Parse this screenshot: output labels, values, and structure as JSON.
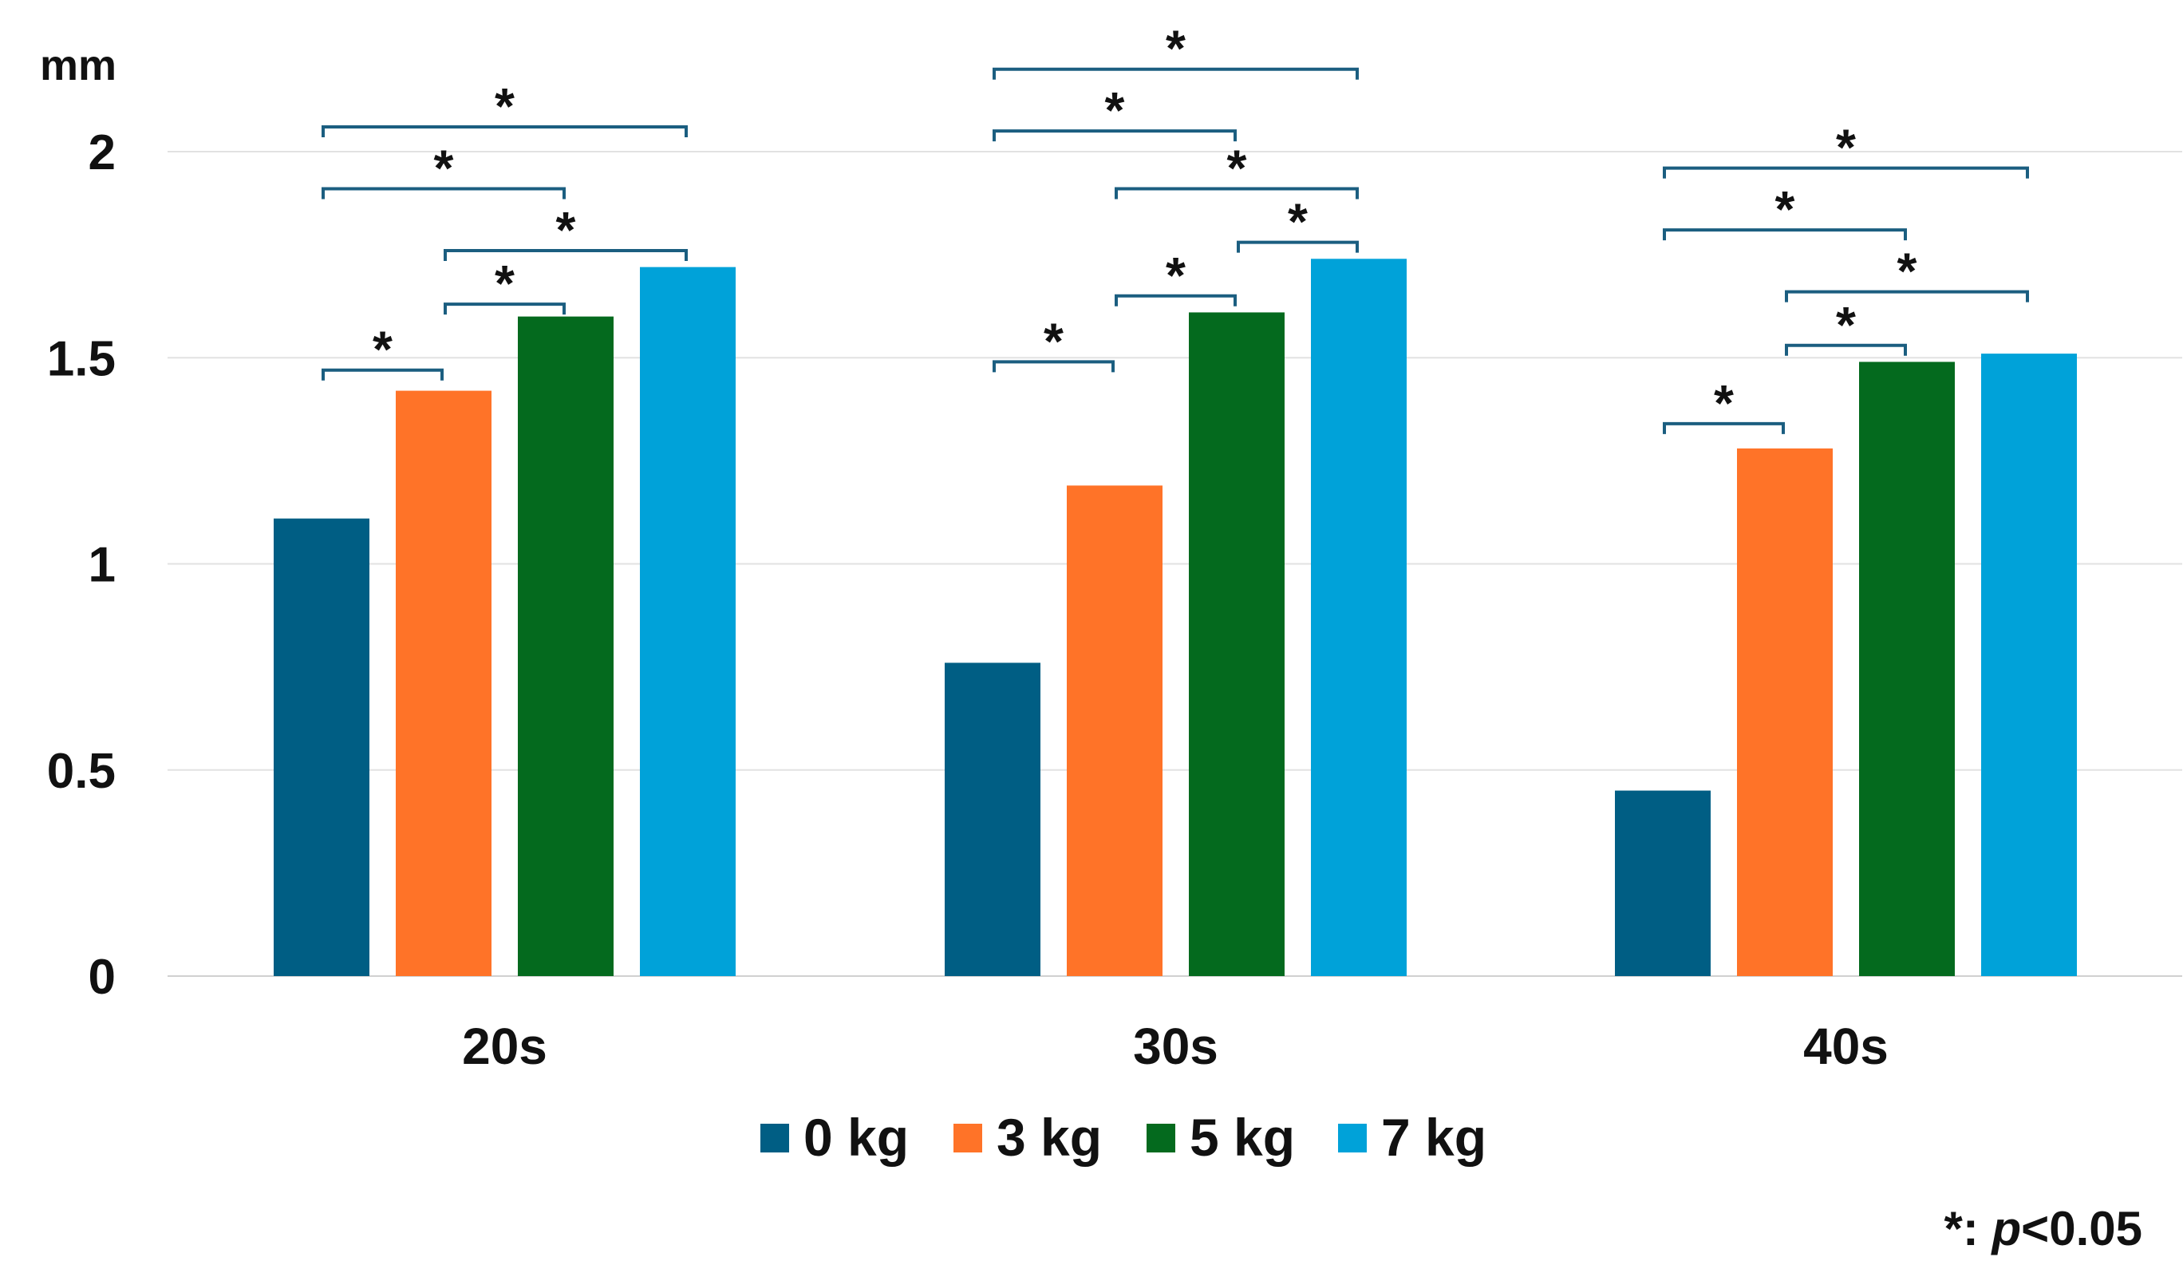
{
  "chart_data": {
    "type": "bar",
    "unit_label": "mm",
    "categories": [
      "20s",
      "30s",
      "40s"
    ],
    "ylim": [
      0,
      2
    ],
    "yticks": [
      "0",
      "0.5",
      "1",
      "1.5",
      "2"
    ],
    "grid": true,
    "legend_position": "bottom",
    "series": [
      {
        "name": "0 kg",
        "color": "#005E84",
        "values": [
          1.11,
          0.76,
          0.45
        ]
      },
      {
        "name": "3 kg",
        "color": "#FF7328",
        "values": [
          1.42,
          1.19,
          1.28
        ]
      },
      {
        "name": "5 kg",
        "color": "#046A1E",
        "values": [
          1.6,
          1.61,
          1.49
        ]
      },
      {
        "name": "7 kg",
        "color": "#00A2D9",
        "values": [
          1.72,
          1.74,
          1.51
        ]
      }
    ],
    "significance_marker": "*",
    "significance_pairs": [
      {
        "category": "20s",
        "from": "0 kg",
        "to": "3 kg",
        "y": 1.47
      },
      {
        "category": "20s",
        "from": "3 kg",
        "to": "5 kg",
        "y": 1.63
      },
      {
        "category": "20s",
        "from": "3 kg",
        "to": "7 kg",
        "y": 1.76
      },
      {
        "category": "20s",
        "from": "0 kg",
        "to": "5 kg",
        "y": 1.91
      },
      {
        "category": "20s",
        "from": "0 kg",
        "to": "7 kg",
        "y": 2.06
      },
      {
        "category": "30s",
        "from": "0 kg",
        "to": "3 kg",
        "y": 1.49
      },
      {
        "category": "30s",
        "from": "3 kg",
        "to": "5 kg",
        "y": 1.65
      },
      {
        "category": "30s",
        "from": "5 kg",
        "to": "7 kg",
        "y": 1.78
      },
      {
        "category": "30s",
        "from": "3 kg",
        "to": "7 kg",
        "y": 1.91
      },
      {
        "category": "30s",
        "from": "0 kg",
        "to": "5 kg",
        "y": 2.05
      },
      {
        "category": "30s",
        "from": "0 kg",
        "to": "7 kg",
        "y": 2.2
      },
      {
        "category": "40s",
        "from": "0 kg",
        "to": "3 kg",
        "y": 1.34
      },
      {
        "category": "40s",
        "from": "3 kg",
        "to": "5 kg",
        "y": 1.53
      },
      {
        "category": "40s",
        "from": "3 kg",
        "to": "7 kg",
        "y": 1.66
      },
      {
        "category": "40s",
        "from": "0 kg",
        "to": "5 kg",
        "y": 1.81
      },
      {
        "category": "40s",
        "from": "0 kg",
        "to": "7 kg",
        "y": 1.96
      }
    ],
    "bracket_color": "#1B5E80",
    "footnote": {
      "marker": "*: ",
      "p_symbol": "p",
      "threshold": "<0.05"
    }
  }
}
